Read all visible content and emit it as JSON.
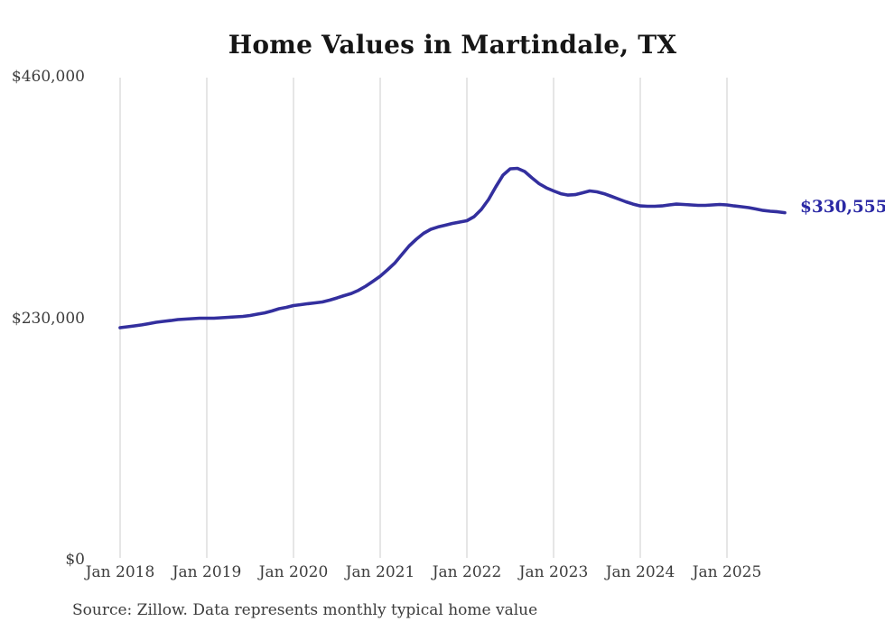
{
  "title": "Home Values in Martindale, TX",
  "end_label": {
    "text": "$330,555"
  },
  "source": "Source: Zillow. Data represents monthly typical home value",
  "colors": {
    "line": "#332f9e",
    "end_label": "#2b29a5",
    "gridline": "#cccccc",
    "axis_text": "#3c3c3c",
    "title_text": "#161616",
    "background": "#ffffff"
  },
  "chart_data": {
    "type": "line",
    "title": "Home Values in Martindale, TX",
    "series_name": "Monthly typical home value",
    "unit": "USD",
    "x_start": "2018-01",
    "x_step_months": 1,
    "xlabel": "",
    "ylabel": "",
    "ylim": [
      0,
      460000
    ],
    "grid": "vertical-only",
    "legend": "none",
    "last_point_label": "$330,555",
    "last_point_value": 330555,
    "y_ticks": [
      {
        "label": "$460,000",
        "value": 460000
      },
      {
        "label": "$230,000",
        "value": 230000
      },
      {
        "label": "$0",
        "value": 0
      }
    ],
    "x_ticks": [
      {
        "label": "Jan 2018",
        "month_index": 0
      },
      {
        "label": "Jan 2019",
        "month_index": 12
      },
      {
        "label": "Jan 2020",
        "month_index": 24
      },
      {
        "label": "Jan 2021",
        "month_index": 36
      },
      {
        "label": "Jan 2022",
        "month_index": 48
      },
      {
        "label": "Jan 2023",
        "month_index": 60
      },
      {
        "label": "Jan 2024",
        "month_index": 72
      },
      {
        "label": "Jan 2025",
        "month_index": 84
      }
    ],
    "values": [
      221000,
      221800,
      222700,
      223600,
      224800,
      226100,
      227000,
      227800,
      228700,
      229100,
      229600,
      230000,
      230000,
      230000,
      230400,
      230900,
      231300,
      231700,
      232600,
      233900,
      235100,
      236900,
      239000,
      240300,
      242000,
      242900,
      243800,
      244600,
      245500,
      247200,
      249300,
      251500,
      253600,
      256600,
      260500,
      265200,
      270000,
      276000,
      282400,
      290600,
      298800,
      305200,
      310800,
      314700,
      316900,
      318600,
      320300,
      321600,
      322900,
      326700,
      333600,
      343100,
      355100,
      366300,
      372300,
      372700,
      369700,
      363700,
      358100,
      354200,
      351200,
      348600,
      347300,
      347700,
      349400,
      351200,
      350400,
      348600,
      346100,
      343500,
      340900,
      338700,
      337000,
      336600,
      336600,
      337000,
      337900,
      338700,
      338300,
      337900,
      337500,
      337500,
      337900,
      338300,
      337900,
      337000,
      336200,
      335300,
      334000,
      332700,
      331900,
      331400,
      330555
    ]
  }
}
